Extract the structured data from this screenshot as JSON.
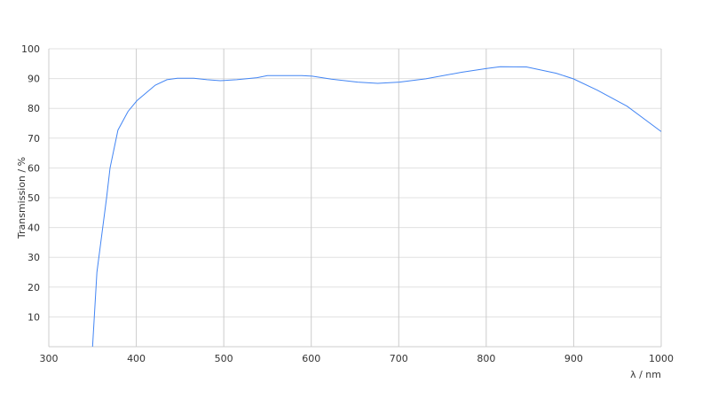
{
  "chart_data": {
    "type": "line",
    "title": "",
    "xlabel": "λ / nm",
    "ylabel": "Transmission / %",
    "xlim": [
      300,
      1000
    ],
    "ylim": [
      0,
      100
    ],
    "x_ticks": [
      300,
      400,
      500,
      600,
      700,
      800,
      900,
      1000
    ],
    "y_ticks": [
      10,
      20,
      30,
      40,
      50,
      60,
      70,
      80,
      90,
      100
    ],
    "grid": true,
    "line_color": "#4285f4",
    "series": [
      {
        "x": [
          350,
          355,
          358.5,
          366,
          370,
          379,
          390.6,
          400.7,
          421.7,
          435,
          447,
          465.7,
          481,
          496,
          514.8,
          538,
          550,
          589,
          601,
          623,
          653,
          676,
          700.7,
          731,
          771.8,
          800.5,
          816,
          846,
          880,
          899.6,
          927,
          961,
          1000
        ],
        "y": [
          0,
          25,
          33,
          50,
          60,
          72.7,
          79,
          82.6,
          87.8,
          89.6,
          90.1,
          90.1,
          89.6,
          89.3,
          89.6,
          90.3,
          91,
          91,
          90.8,
          89.8,
          88.8,
          88.4,
          88.8,
          89.9,
          92.1,
          93.4,
          94,
          93.9,
          91.8,
          89.9,
          86.1,
          80.7,
          72.2
        ]
      }
    ]
  }
}
